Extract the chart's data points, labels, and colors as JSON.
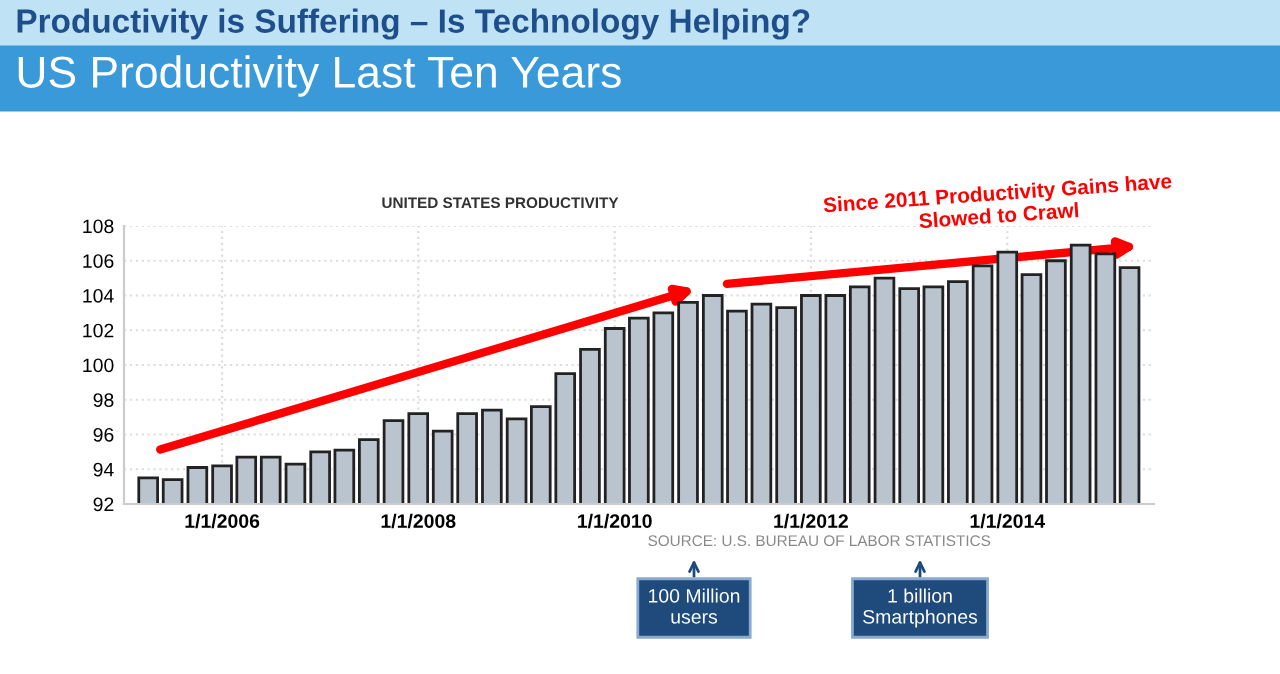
{
  "chart_data": {
    "type": "bar",
    "title": "Productivity is Suffering – Is Technology Helping?",
    "subtitle": "US Productivity Last Ten Years",
    "x": [
      "2005-04",
      "2005-07",
      "2005-10",
      "2006-01",
      "2006-04",
      "2006-07",
      "2006-10",
      "2007-01",
      "2007-04",
      "2007-07",
      "2007-10",
      "2008-01",
      "2008-04",
      "2008-07",
      "2008-10",
      "2009-01",
      "2009-04",
      "2009-07",
      "2009-10",
      "2010-01",
      "2010-04",
      "2010-07",
      "2010-10",
      "2011-01",
      "2011-04",
      "2011-07",
      "2011-10",
      "2012-01",
      "2012-04",
      "2012-07",
      "2012-10",
      "2013-01",
      "2013-04",
      "2013-07",
      "2013-10",
      "2014-01",
      "2014-04",
      "2014-07",
      "2014-10",
      "2015-01",
      "2015-04"
    ],
    "series": [
      {
        "color": "#b9c4ce",
        "values": [
          93.5,
          93.4,
          94.1,
          94.2,
          94.7,
          94.7,
          94.3,
          95.0,
          95.1,
          95.7,
          96.8,
          97.2,
          96.2,
          97.2,
          97.4,
          96.9,
          97.6,
          99.5,
          100.9,
          102.1,
          102.7,
          103.0,
          103.6,
          104.0,
          103.1,
          103.5,
          103.3,
          104.0,
          104.0,
          104.5,
          105.0,
          104.4,
          104.5,
          104.8,
          105.7,
          106.5,
          105.2,
          106.0,
          106.9,
          106.4,
          105.6
        ]
      }
    ],
    "xlim": [
      "2005-01",
      "2015-07"
    ],
    "xticks": [
      {
        "value": "2006-01-01",
        "label": "1/1/2006"
      },
      {
        "value": "2008-01-01",
        "label": "1/1/2008"
      },
      {
        "value": "2010-01-01",
        "label": "1/1/2010"
      },
      {
        "value": "2012-01-01",
        "label": "1/1/2012"
      },
      {
        "value": "2014-01-01",
        "label": "1/1/2014"
      }
    ],
    "ylim": [
      92,
      108
    ],
    "yticks": [
      92,
      94,
      96,
      98,
      100,
      102,
      104,
      106,
      108
    ],
    "grid": true,
    "annotations": [
      "UNITED STATES PRODUCTIVITY",
      "Since 2011 Productivity Gains have\nSlowed to Crawl",
      "SOURCE: U.S. BUREAU OF LABOR STATISTICS",
      "100 Million\nusers",
      "1 billion\nSmartphones"
    ]
  }
}
